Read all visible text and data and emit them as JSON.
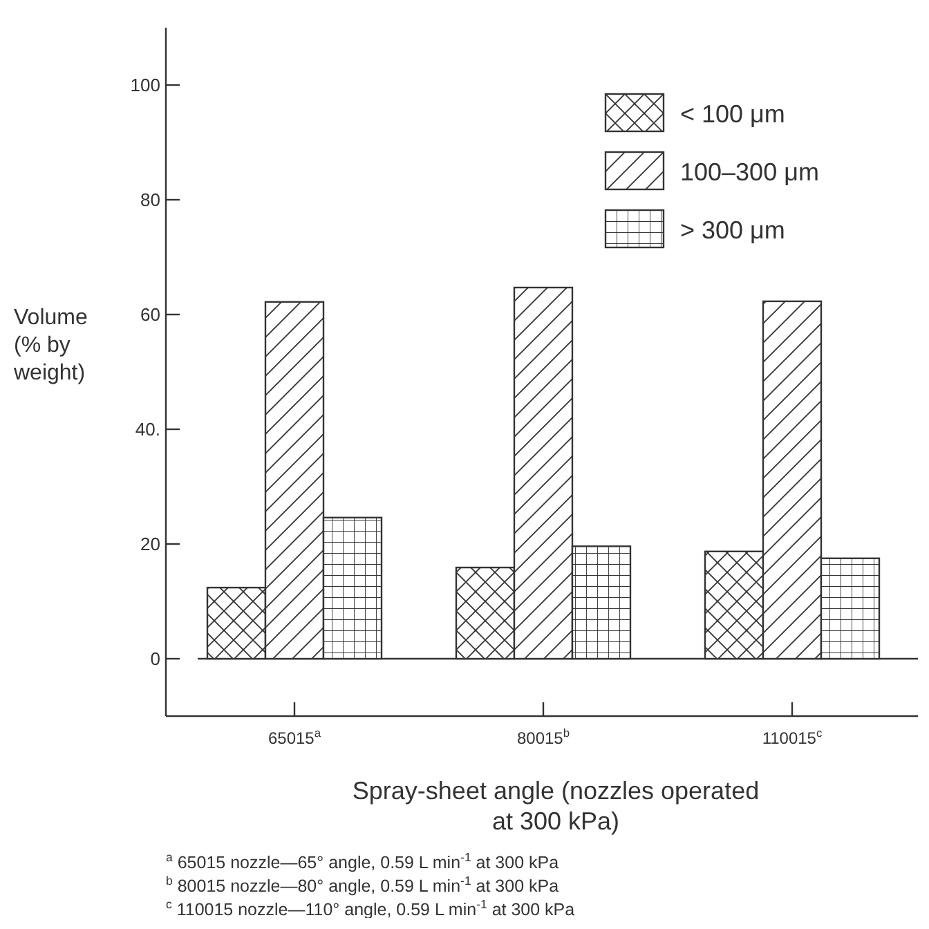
{
  "chart_data": {
    "type": "bar",
    "categories": [
      "65015$^{a}$",
      "80015$^{b}$",
      "110015$^{c}$"
    ],
    "series": [
      {
        "name": "< 100 μm",
        "color": "#333333",
        "values": [
          12.4,
          15.9,
          18.7
        ]
      },
      {
        "name": "100–300 μm",
        "color": "#333333",
        "values": [
          62.2,
          64.7,
          62.3
        ]
      },
      {
        "name": "> 300 μm",
        "color": "#333333",
        "values": [
          24.6,
          19.6,
          17.5
        ]
      }
    ],
    "ylim": [
      -10,
      110
    ],
    "yticks": [
      0,
      20,
      {
        "value": 40,
        "label": "40."
      },
      60,
      80,
      100
    ],
    "xlabel": "Spray-sheet angle (nozzles operated at 300 kPa)",
    "ylabel": "Volume (% by weight)",
    "ref_lines": [
      {
        "axis": "y",
        "value": 0,
        "color": "#333333"
      }
    ],
    "legend": "top right",
    "grid": false,
    "annotations": [
      "$^{a}$ 65015 nozzle—65° angle, 0.59 L min$^{-1}$ at 300 kPa",
      "$^{b}$ 80015 nozzle—80° angle, 0.59 L min$^{-1}$ at 300 kPa",
      "$^{c}$ 110015 nozzle—110° angle, 0.59 L min$^{-1}$ at 300 kPa"
    ]
  }
}
